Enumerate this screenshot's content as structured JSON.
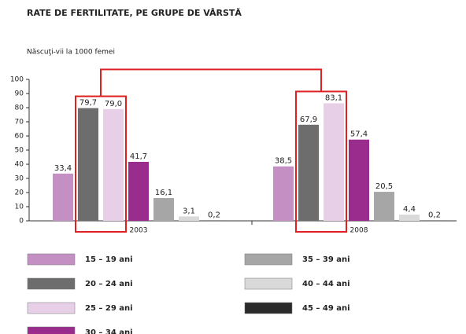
{
  "chart_data": {
    "type": "bar",
    "title": "RATE DE FERTILITATE, PE GRUPE DE VÂRSTĂ",
    "subtitle": "Născuţi-vii la 1000 femei",
    "categories": [
      "2003",
      "2008"
    ],
    "series": [
      {
        "name": "15 – 19 ani",
        "color": "#c490c4",
        "values": [
          33.4,
          38.5
        ],
        "value_labels": [
          "33,4",
          "38,5"
        ]
      },
      {
        "name": "20 – 24 ani",
        "color": "#6d6d6d",
        "values": [
          79.7,
          67.9
        ],
        "value_labels": [
          "79,7",
          "67,9"
        ]
      },
      {
        "name": "25 – 29 ani",
        "color": "#e8cfe8",
        "values": [
          79.0,
          83.1
        ],
        "value_labels": [
          "79,0",
          "83,1"
        ]
      },
      {
        "name": "30 – 34 ani",
        "color": "#9a2c8e",
        "values": [
          41.7,
          57.4
        ],
        "value_labels": [
          "41,7",
          "57,4"
        ]
      },
      {
        "name": "35 – 39 ani",
        "color": "#a6a6a6",
        "values": [
          16.1,
          20.5
        ],
        "value_labels": [
          "16,1",
          "20,5"
        ]
      },
      {
        "name": "40 – 44 ani",
        "color": "#d9d9d9",
        "values": [
          3.1,
          4.4
        ],
        "value_labels": [
          "3,1",
          "4,4"
        ]
      },
      {
        "name": "45 – 49 ani",
        "color": "#2a2a2a",
        "values": [
          0.2,
          0.2
        ],
        "value_labels": [
          "0,2",
          "0,2"
        ]
      }
    ],
    "ylim": [
      0,
      100
    ],
    "yticks": [
      0,
      10,
      20,
      30,
      40,
      50,
      60,
      70,
      80,
      90,
      100
    ],
    "grid": false
  }
}
